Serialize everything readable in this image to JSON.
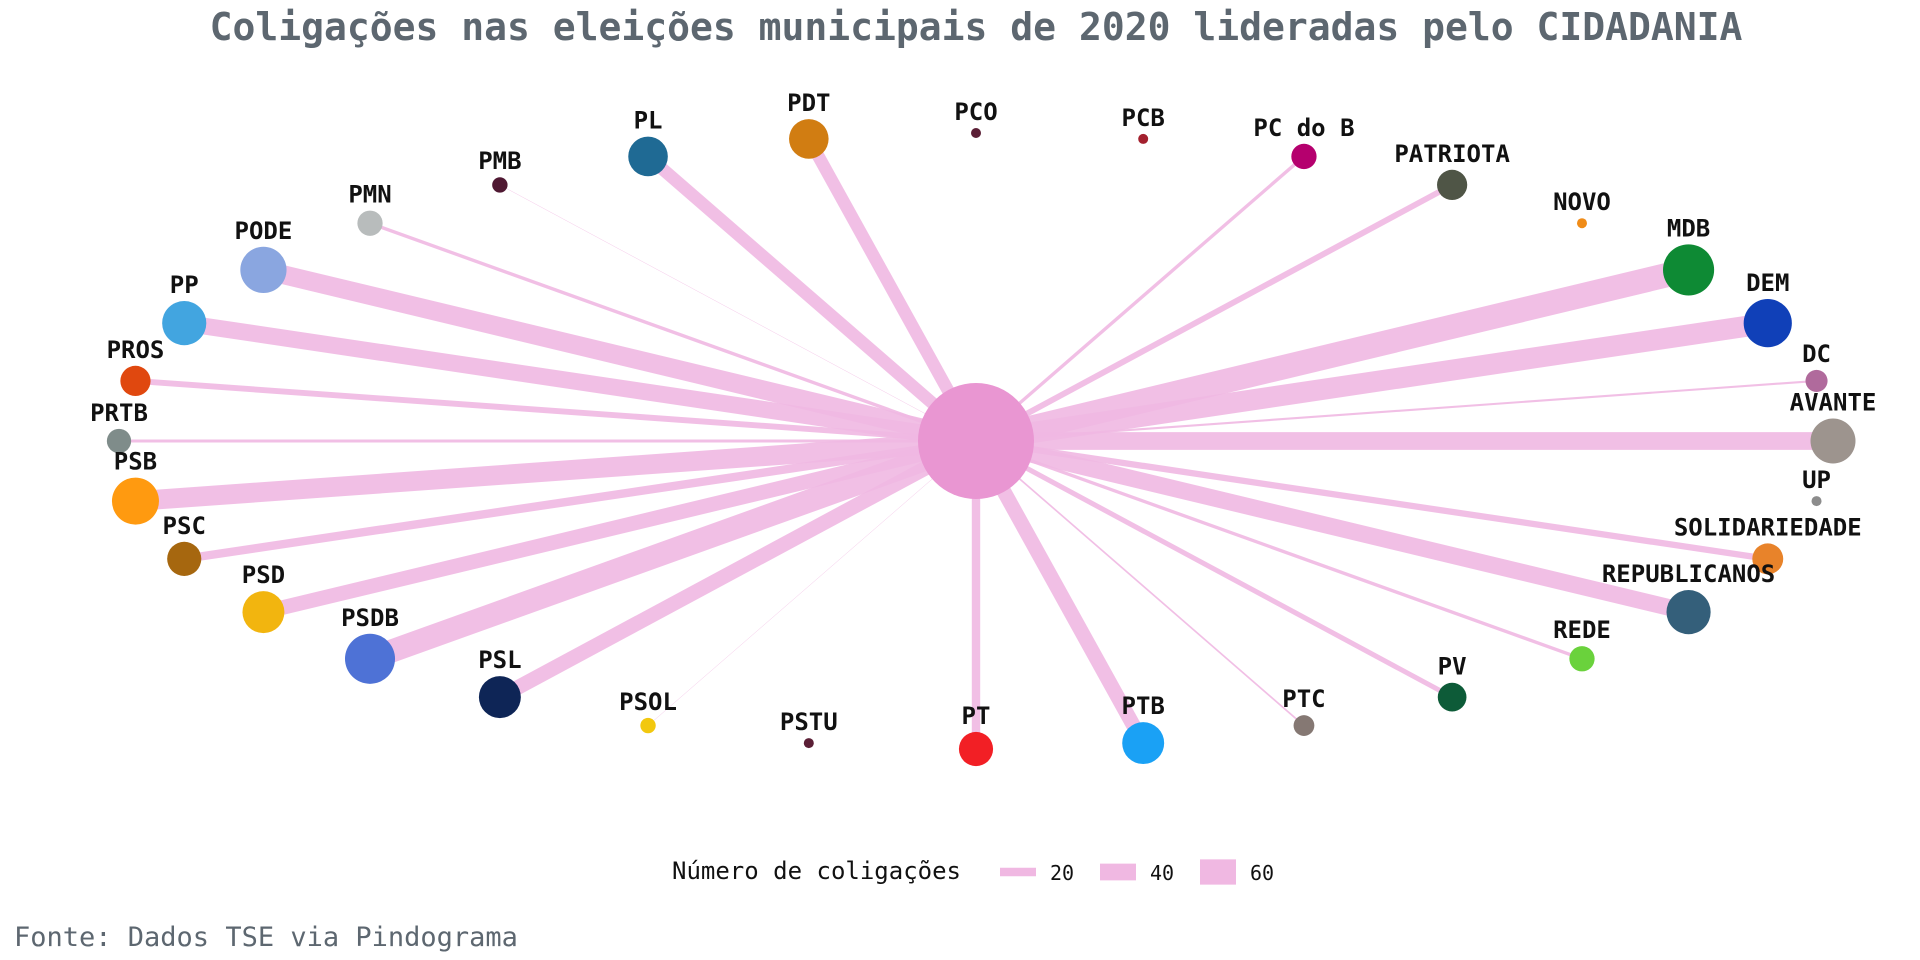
{
  "chart_data": {
    "type": "network",
    "title": "Coligações nas eleições municipais de 2020 lideradas pelo CIDADANIA",
    "source": "Fonte: Dados TSE via Pindograma",
    "center": {
      "name": "CIDADANIA",
      "color": "#e996d2"
    },
    "edge_color": "#f0b8e2",
    "legend": {
      "title": "Número de coligações",
      "ticks": [
        20,
        40,
        60
      ]
    },
    "nodes": [
      {
        "name": "PCO",
        "value": 0,
        "color": "#5b1f36"
      },
      {
        "name": "PCB",
        "value": 0,
        "color": "#a3202e"
      },
      {
        "name": "PC do B",
        "value": 8,
        "color": "#b5006e"
      },
      {
        "name": "PATRIOTA",
        "value": 14,
        "color": "#4f5546"
      },
      {
        "name": "NOVO",
        "value": 0,
        "color": "#f08c18"
      },
      {
        "name": "MDB",
        "value": 58,
        "color": "#0e8a34"
      },
      {
        "name": "DEM",
        "value": 50,
        "color": "#1040b8"
      },
      {
        "name": "DC",
        "value": 5,
        "color": "#b06a9c"
      },
      {
        "name": "AVANTE",
        "value": 42,
        "color": "#9d948e"
      },
      {
        "name": "UP",
        "value": 0,
        "color": "#8c8c8c"
      },
      {
        "name": "SOLIDARIEDADE",
        "value": 15,
        "color": "#e8832a"
      },
      {
        "name": "REPUBLICANOS",
        "value": 40,
        "color": "#345f7a"
      },
      {
        "name": "REDE",
        "value": 8,
        "color": "#6ad23c"
      },
      {
        "name": "PV",
        "value": 12,
        "color": "#0d5b38"
      },
      {
        "name": "PTC",
        "value": 4,
        "color": "#857873"
      },
      {
        "name": "PTB",
        "value": 35,
        "color": "#1aa1f5"
      },
      {
        "name": "PT",
        "value": 20,
        "color": "#f21f25"
      },
      {
        "name": "PSTU",
        "value": 0,
        "color": "#5b1f36"
      },
      {
        "name": "PSOL",
        "value": 1,
        "color": "#f2c80f"
      },
      {
        "name": "PSL",
        "value": 35,
        "color": "#0e2556"
      },
      {
        "name": "PSDB",
        "value": 55,
        "color": "#4e72d6"
      },
      {
        "name": "PSD",
        "value": 35,
        "color": "#f2b50f"
      },
      {
        "name": "PSC",
        "value": 20,
        "color": "#a6670f"
      },
      {
        "name": "PSB",
        "value": 47,
        "color": "#ff9a10"
      },
      {
        "name": "PRTB",
        "value": 7,
        "color": "#7f8c8a"
      },
      {
        "name": "PROS",
        "value": 14,
        "color": "#e0480f"
      },
      {
        "name": "PP",
        "value": 40,
        "color": "#42a5e0"
      },
      {
        "name": "PODE",
        "value": 45,
        "color": "#8aa6e0"
      },
      {
        "name": "PMN",
        "value": 8,
        "color": "#b8bcbc"
      },
      {
        "name": "PMB",
        "value": 1,
        "color": "#4f1832"
      },
      {
        "name": "PL",
        "value": 30,
        "color": "#1f6a94"
      },
      {
        "name": "PDT",
        "value": 30,
        "color": "#d17d12"
      }
    ]
  }
}
